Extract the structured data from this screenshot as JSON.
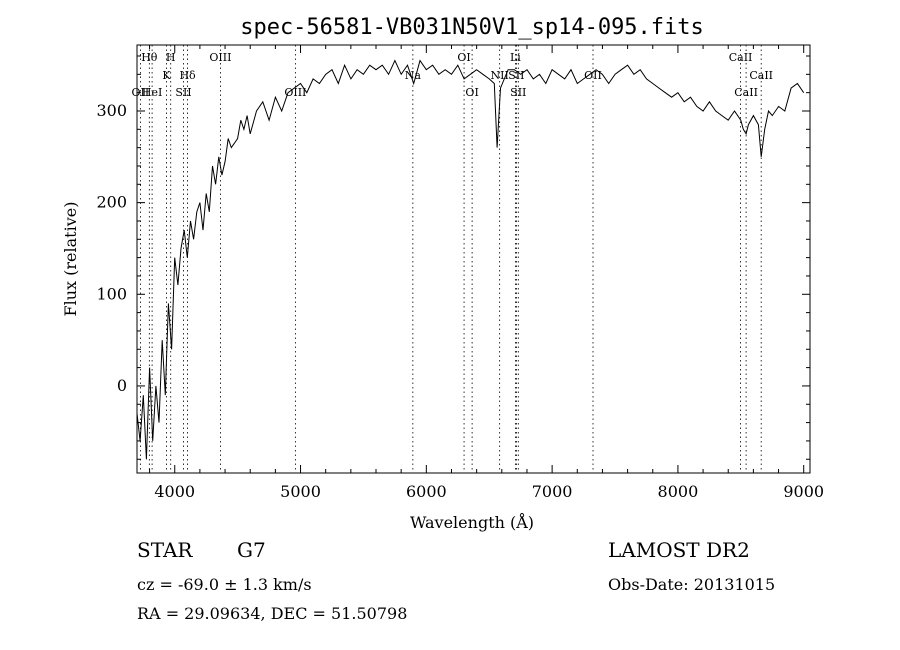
{
  "chart_data": {
    "type": "line",
    "title": "spec-56581-VB031N50V1_sp14-095.fits",
    "xlabel": "Wavelength (Å)",
    "ylabel": "Flux (relative)",
    "xlim": [
      3700,
      9050
    ],
    "ylim": [
      -95,
      372
    ],
    "x_ticks": [
      4000,
      5000,
      6000,
      7000,
      8000,
      9000
    ],
    "y_ticks": [
      0,
      100,
      200,
      300
    ],
    "grid": false,
    "color": "#000000",
    "spectral_lines": [
      {
        "label": "OII",
        "x": 3727,
        "row": 3
      },
      {
        "label": "Hθ",
        "x": 3798,
        "row": 0
      },
      {
        "label": "HeI",
        "x": 3820,
        "row": 3
      },
      {
        "label": "K",
        "x": 3934,
        "row": 1
      },
      {
        "label": "H",
        "x": 3968,
        "row": 0
      },
      {
        "label": "SII",
        "x": 4070,
        "row": 3
      },
      {
        "label": "Hδ",
        "x": 4102,
        "row": 1
      },
      {
        "label": "OIII",
        "x": 4363,
        "row": 0
      },
      {
        "label": "OIII",
        "x": 4959,
        "row": 3
      },
      {
        "label": "Na",
        "x": 5893,
        "row": 2
      },
      {
        "label": "OI",
        "x": 6300,
        "row": 0
      },
      {
        "label": "OI",
        "x": 6364,
        "row": 3
      },
      {
        "label": "NII",
        "x": 6583,
        "row": 2
      },
      {
        "label": "Li",
        "x": 6708,
        "row": 0
      },
      {
        "label": "SII",
        "x": 6716,
        "row": 2
      },
      {
        "label": "SII",
        "x": 6731,
        "row": 3
      },
      {
        "label": "OII",
        "x": 7325,
        "row": 2
      },
      {
        "label": "CaII",
        "x": 8498,
        "row": 0
      },
      {
        "label": "CaII",
        "x": 8542,
        "row": 3
      },
      {
        "label": "CaII",
        "x": 8662,
        "row": 2
      }
    ],
    "series": [
      {
        "x": [
          3700,
          3725,
          3750,
          3775,
          3800,
          3825,
          3850,
          3875,
          3900,
          3925,
          3950,
          3975,
          4000,
          4025,
          4050,
          4075,
          4100,
          4125,
          4150,
          4175,
          4200,
          4225,
          4250,
          4275,
          4300,
          4325,
          4350,
          4375,
          4400,
          4425,
          4450,
          4475,
          4500,
          4525,
          4550,
          4575,
          4600,
          4650,
          4700,
          4750,
          4800,
          4850,
          4900,
          4950,
          5000,
          5050,
          5100,
          5150,
          5200,
          5250,
          5300,
          5350,
          5400,
          5450,
          5500,
          5550,
          5600,
          5650,
          5700,
          5750,
          5800,
          5850,
          5900,
          5950,
          6000,
          6050,
          6100,
          6150,
          6200,
          6250,
          6300,
          6350,
          6400,
          6450,
          6500,
          6540,
          6563,
          6590,
          6650,
          6700,
          6750,
          6800,
          6850,
          6900,
          6950,
          7000,
          7050,
          7100,
          7150,
          7200,
          7250,
          7300,
          7350,
          7400,
          7450,
          7500,
          7550,
          7600,
          7650,
          7700,
          7750,
          7800,
          7850,
          7900,
          7950,
          8000,
          8050,
          8100,
          8150,
          8200,
          8250,
          8300,
          8350,
          8400,
          8450,
          8500,
          8520,
          8542,
          8560,
          8600,
          8640,
          8662,
          8690,
          8720,
          8750,
          8800,
          8850,
          8900,
          8950,
          9000
        ],
        "values": [
          -30,
          -60,
          -10,
          -80,
          20,
          -60,
          0,
          -40,
          50,
          -10,
          90,
          40,
          140,
          110,
          150,
          170,
          140,
          180,
          160,
          190,
          200,
          170,
          210,
          190,
          240,
          220,
          250,
          230,
          245,
          270,
          260,
          265,
          270,
          290,
          280,
          295,
          275,
          300,
          310,
          290,
          315,
          300,
          320,
          325,
          330,
          320,
          335,
          330,
          340,
          345,
          330,
          350,
          335,
          345,
          340,
          350,
          345,
          350,
          340,
          355,
          340,
          350,
          330,
          355,
          345,
          350,
          340,
          345,
          340,
          350,
          335,
          340,
          345,
          340,
          335,
          330,
          260,
          325,
          345,
          345,
          340,
          345,
          335,
          340,
          330,
          345,
          340,
          335,
          345,
          330,
          335,
          340,
          345,
          340,
          330,
          340,
          345,
          350,
          340,
          345,
          335,
          330,
          325,
          320,
          315,
          320,
          310,
          315,
          305,
          300,
          310,
          300,
          295,
          290,
          300,
          290,
          280,
          275,
          285,
          295,
          285,
          250,
          280,
          300,
          295,
          305,
          300,
          325,
          330,
          320
        ]
      }
    ]
  },
  "info": {
    "object_class": "STAR",
    "subclass": "G7",
    "survey": "LAMOST DR2",
    "redshift": "cz = -69.0 ± 1.3 km/s",
    "obs_date": "Obs-Date: 20131015",
    "coords": "RA =  29.09634, DEC =  51.50798"
  }
}
